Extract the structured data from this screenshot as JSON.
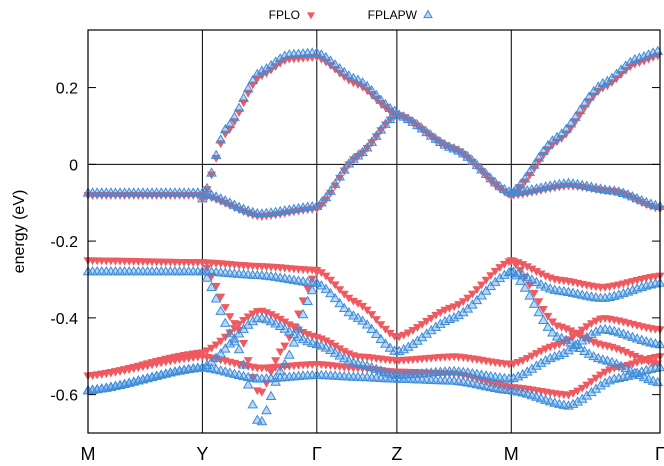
{
  "chart_data": {
    "type": "scatter",
    "title": "",
    "xlabel": "",
    "ylabel": "energy (eV)",
    "ylim": [
      -0.7,
      0.35
    ],
    "xlim": [
      0,
      5
    ],
    "y_ticks": [
      0.2,
      0,
      -0.2,
      -0.4,
      -0.6
    ],
    "y_tick_labels": [
      "0.2",
      "0",
      "-0.2",
      "-0.4",
      "-0.6"
    ],
    "k_points": [
      {
        "label": "M",
        "x": 0
      },
      {
        "label": "Y",
        "x": 1
      },
      {
        "label": "Γ",
        "x": 2
      },
      {
        "label": "Z",
        "x": 2.7
      },
      {
        "label": "M",
        "x": 3.7
      },
      {
        "label": "Γ",
        "x": 5
      }
    ],
    "grid": false,
    "zero_line": true,
    "legend": {
      "position": "top-center"
    },
    "series": [
      {
        "name": "FPLO",
        "marker": "triangle-down",
        "color": "#f0595f",
        "bands": [
          [
            [
              0,
              -0.08
            ],
            [
              1,
              -0.08
            ],
            [
              1.5,
              -0.135
            ],
            [
              2,
              -0.115
            ],
            [
              2.35,
              0.02
            ],
            [
              2.7,
              0.13
            ],
            [
              3.2,
              0.04
            ],
            [
              3.7,
              -0.08
            ],
            [
              4.2,
              -0.055
            ],
            [
              4.6,
              -0.07
            ],
            [
              5,
              -0.115
            ]
          ],
          [
            [
              1,
              -0.09
            ],
            [
              1.2,
              0.08
            ],
            [
              1.5,
              0.23
            ],
            [
              1.75,
              0.275
            ],
            [
              2,
              0.28
            ],
            [
              2.35,
              0.21
            ],
            [
              2.7,
              0.13
            ]
          ],
          [
            [
              3.7,
              -0.08
            ],
            [
              4.1,
              0.06
            ],
            [
              4.5,
              0.2
            ],
            [
              4.8,
              0.265
            ],
            [
              5,
              0.285
            ]
          ],
          [
            [
              0,
              -0.25
            ],
            [
              1,
              -0.255
            ],
            [
              1.5,
              -0.265
            ],
            [
              2,
              -0.275
            ],
            [
              2.35,
              -0.36
            ],
            [
              2.7,
              -0.45
            ],
            [
              3.2,
              -0.37
            ],
            [
              3.7,
              -0.25
            ],
            [
              4.1,
              -0.3
            ],
            [
              4.5,
              -0.32
            ],
            [
              5,
              -0.29
            ]
          ],
          [
            [
              0,
              -0.55
            ],
            [
              1,
              -0.49
            ],
            [
              1.5,
              -0.38
            ],
            [
              2,
              -0.45
            ],
            [
              2.35,
              -0.5
            ],
            [
              2.7,
              -0.51
            ],
            [
              3.2,
              -0.5
            ],
            [
              3.7,
              -0.52
            ],
            [
              4.1,
              -0.47
            ],
            [
              4.5,
              -0.4
            ],
            [
              5,
              -0.43
            ]
          ],
          [
            [
              0,
              -0.55
            ],
            [
              1,
              -0.5
            ],
            [
              1.5,
              -0.53
            ],
            [
              2,
              -0.52
            ],
            [
              2.35,
              -0.53
            ],
            [
              2.7,
              -0.54
            ],
            [
              3.2,
              -0.545
            ],
            [
              3.7,
              -0.58
            ],
            [
              4.2,
              -0.6
            ],
            [
              4.6,
              -0.53
            ],
            [
              5,
              -0.5
            ]
          ],
          [
            [
              1,
              -0.255
            ],
            [
              1.3,
              -0.42
            ],
            [
              1.5,
              -0.6
            ],
            [
              1.7,
              -0.48
            ],
            [
              2,
              -0.28
            ]
          ],
          [
            [
              3.7,
              -0.25
            ],
            [
              4.1,
              -0.42
            ],
            [
              4.5,
              -0.47
            ],
            [
              5,
              -0.52
            ]
          ]
        ]
      },
      {
        "name": "FPLAPW",
        "marker": "triangle-up",
        "color": "#3c8cdc",
        "bands": [
          [
            [
              0,
              -0.075
            ],
            [
              1,
              -0.075
            ],
            [
              1.5,
              -0.13
            ],
            [
              2,
              -0.11
            ],
            [
              2.35,
              0.02
            ],
            [
              2.7,
              0.13
            ],
            [
              3.2,
              0.04
            ],
            [
              3.7,
              -0.075
            ],
            [
              4.2,
              -0.05
            ],
            [
              4.6,
              -0.07
            ],
            [
              5,
              -0.11
            ]
          ],
          [
            [
              1,
              -0.09
            ],
            [
              1.2,
              0.09
            ],
            [
              1.5,
              0.24
            ],
            [
              1.75,
              0.285
            ],
            [
              2,
              0.29
            ],
            [
              2.35,
              0.22
            ],
            [
              2.7,
              0.135
            ]
          ],
          [
            [
              3.7,
              -0.075
            ],
            [
              4.1,
              0.07
            ],
            [
              4.5,
              0.21
            ],
            [
              4.8,
              0.275
            ],
            [
              5,
              0.295
            ]
          ],
          [
            [
              0,
              -0.28
            ],
            [
              1,
              -0.28
            ],
            [
              1.5,
              -0.29
            ],
            [
              2,
              -0.31
            ],
            [
              2.35,
              -0.4
            ],
            [
              2.7,
              -0.49
            ],
            [
              3.2,
              -0.4
            ],
            [
              3.7,
              -0.28
            ],
            [
              4.1,
              -0.33
            ],
            [
              4.5,
              -0.35
            ],
            [
              5,
              -0.31
            ]
          ],
          [
            [
              0,
              -0.59
            ],
            [
              1,
              -0.53
            ],
            [
              1.5,
              -0.4
            ],
            [
              2,
              -0.47
            ],
            [
              2.35,
              -0.52
            ],
            [
              2.7,
              -0.55
            ],
            [
              3.2,
              -0.54
            ],
            [
              3.7,
              -0.56
            ],
            [
              4.1,
              -0.5
            ],
            [
              4.5,
              -0.43
            ],
            [
              5,
              -0.47
            ]
          ],
          [
            [
              0,
              -0.59
            ],
            [
              1,
              -0.53
            ],
            [
              1.5,
              -0.56
            ],
            [
              2,
              -0.55
            ],
            [
              2.35,
              -0.555
            ],
            [
              2.7,
              -0.56
            ],
            [
              3.2,
              -0.565
            ],
            [
              3.7,
              -0.59
            ],
            [
              4.2,
              -0.63
            ],
            [
              4.6,
              -0.56
            ],
            [
              5,
              -0.53
            ]
          ],
          [
            [
              1,
              -0.28
            ],
            [
              1.3,
              -0.47
            ],
            [
              1.5,
              -0.68
            ],
            [
              1.7,
              -0.53
            ],
            [
              2,
              -0.31
            ]
          ],
          [
            [
              3.7,
              -0.28
            ],
            [
              4.1,
              -0.45
            ],
            [
              4.5,
              -0.51
            ],
            [
              5,
              -0.57
            ]
          ]
        ]
      }
    ]
  }
}
